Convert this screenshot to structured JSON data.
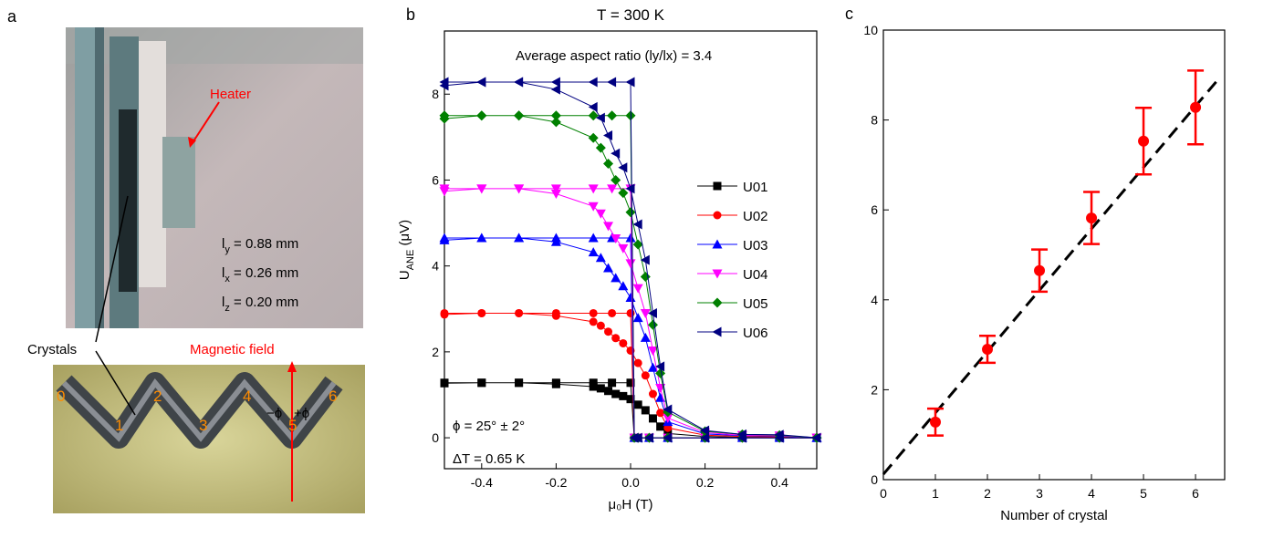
{
  "photo": {
    "panel": "a",
    "heater": "Heater",
    "dims": [
      {
        "main": "l",
        "sub": "y",
        "rest": " = 0.88 mm"
      },
      {
        "main": "l",
        "sub": "x",
        "rest": " = 0.26 mm"
      },
      {
        "main": "l",
        "sub": "z",
        "rest": " = 0.20 mm"
      }
    ],
    "crystals": "Crystals",
    "field": "Magnetic field",
    "numbers": [
      "0",
      "1",
      "2",
      "3",
      "4",
      "5",
      "6"
    ],
    "angle_minus": "−ϕ",
    "angle_plus": "+ϕ"
  },
  "chart_data": [
    {
      "type": "line",
      "panel": "b",
      "title": "T = 300 K",
      "xlabel": "μ₀H (T)",
      "ylabel": {
        "main": "U",
        "sub": "ANE",
        "unit": " (μV)"
      },
      "annotations": [
        "Average aspect ratio (ly/lx) = 3.4",
        "ϕ = 25° ± 2°",
        "ΔT = 0.65 K"
      ],
      "xlim": [
        -0.5,
        0.5
      ],
      "ylim": [
        -0.72,
        9.47
      ],
      "xticks": [
        -0.4,
        -0.2,
        {
          "value": 0,
          "label": "0.0"
        },
        0.2,
        0.4
      ],
      "yticks": [
        0,
        2,
        4,
        6,
        8
      ],
      "x": [
        0.5,
        0.4,
        0.3,
        0.2,
        0.1,
        0.08,
        0.06,
        0.04,
        0.02,
        0,
        -0.02,
        -0.04,
        -0.06,
        -0.08,
        -0.1,
        -0.2,
        -0.3,
        -0.4,
        -0.5,
        null,
        -0.5,
        -0.4,
        -0.3,
        -0.2,
        -0.1,
        -0.05,
        0,
        0.01,
        0.02,
        0.05,
        0.1,
        0.2,
        0.3,
        0.4,
        0.5
      ],
      "series": [
        {
          "name": "U01",
          "color": "#000000",
          "marker": "square",
          "values": [
            0,
            0.01,
            0.01,
            0.03,
            0.1,
            0.26,
            0.45,
            0.64,
            0.77,
            0.9,
            0.97,
            1.02,
            1.09,
            1.15,
            1.19,
            1.25,
            1.28,
            1.28,
            1.27,
            null,
            1.28,
            1.28,
            1.28,
            1.28,
            1.28,
            1.28,
            1.28,
            0,
            0,
            0,
            0,
            0,
            0,
            0,
            0
          ]
        },
        {
          "name": "U02",
          "color": "#ff0000",
          "marker": "circle",
          "values": [
            0,
            0.02,
            0.03,
            0.06,
            0.23,
            0.58,
            1.02,
            1.45,
            1.74,
            2.03,
            2.2,
            2.32,
            2.47,
            2.61,
            2.7,
            2.84,
            2.9,
            2.9,
            2.87,
            null,
            2.9,
            2.9,
            2.9,
            2.9,
            2.9,
            2.9,
            2.9,
            0,
            0,
            0,
            0,
            0,
            0,
            0,
            0
          ]
        },
        {
          "name": "U03",
          "color": "#0000ff",
          "marker": "triangle-up",
          "values": [
            0,
            0.04,
            0.05,
            0.09,
            0.37,
            0.93,
            1.63,
            2.33,
            2.79,
            3.26,
            3.53,
            3.72,
            3.95,
            4.19,
            4.32,
            4.56,
            4.65,
            4.65,
            4.6,
            null,
            4.65,
            4.65,
            4.65,
            4.65,
            4.65,
            4.65,
            4.65,
            0,
            0,
            0,
            0,
            0,
            0,
            0,
            0
          ]
        },
        {
          "name": "U04",
          "color": "#ff00ff",
          "marker": "triangle-down",
          "values": [
            0,
            0.05,
            0.06,
            0.12,
            0.46,
            1.16,
            2.03,
            2.9,
            3.48,
            4.06,
            4.41,
            4.64,
            4.93,
            5.22,
            5.39,
            5.68,
            5.8,
            5.8,
            5.74,
            null,
            5.8,
            5.8,
            5.8,
            5.8,
            5.8,
            5.8,
            5.8,
            0,
            0,
            0,
            0,
            0,
            0,
            0,
            0
          ]
        },
        {
          "name": "U05",
          "color": "#008000",
          "marker": "diamond",
          "values": [
            0,
            0.06,
            0.08,
            0.15,
            0.6,
            1.5,
            2.63,
            3.75,
            4.5,
            5.25,
            5.7,
            6,
            6.38,
            6.75,
            6.98,
            7.35,
            7.5,
            7.5,
            7.43,
            null,
            7.5,
            7.5,
            7.5,
            7.5,
            7.5,
            7.5,
            7.5,
            0,
            0,
            0,
            0,
            0,
            0,
            0,
            0
          ]
        },
        {
          "name": "U06",
          "color": "#000080",
          "marker": "triangle-left",
          "values": [
            0,
            0.07,
            0.08,
            0.17,
            0.66,
            1.66,
            2.9,
            4.14,
            4.97,
            5.8,
            6.29,
            6.62,
            7.04,
            7.45,
            7.7,
            8.11,
            8.28,
            8.28,
            8.2,
            null,
            8.28,
            8.28,
            8.28,
            8.28,
            8.28,
            8.28,
            8.28,
            0,
            0,
            0,
            0,
            0,
            0,
            0,
            0
          ]
        }
      ]
    },
    {
      "type": "errorbar",
      "panel": "c",
      "xlabel": "Number of crystal",
      "xlim": [
        0,
        6.56
      ],
      "ylim": [
        0,
        10
      ],
      "xticks": [
        0,
        1,
        2,
        3,
        4,
        5,
        6
      ],
      "yticks": [
        0,
        2,
        4,
        6,
        8,
        10
      ],
      "color": "#ff0000",
      "x": [
        1,
        2,
        3,
        4,
        5,
        6
      ],
      "values": [
        1.28,
        2.9,
        4.65,
        5.82,
        7.53,
        8.28
      ],
      "errors": [
        0.3,
        0.3,
        0.47,
        0.58,
        0.74,
        0.82
      ],
      "fit": {
        "x": [
          0,
          6.47
        ],
        "values": [
          0.12,
          8.95
        ],
        "color": "#000000"
      }
    }
  ]
}
